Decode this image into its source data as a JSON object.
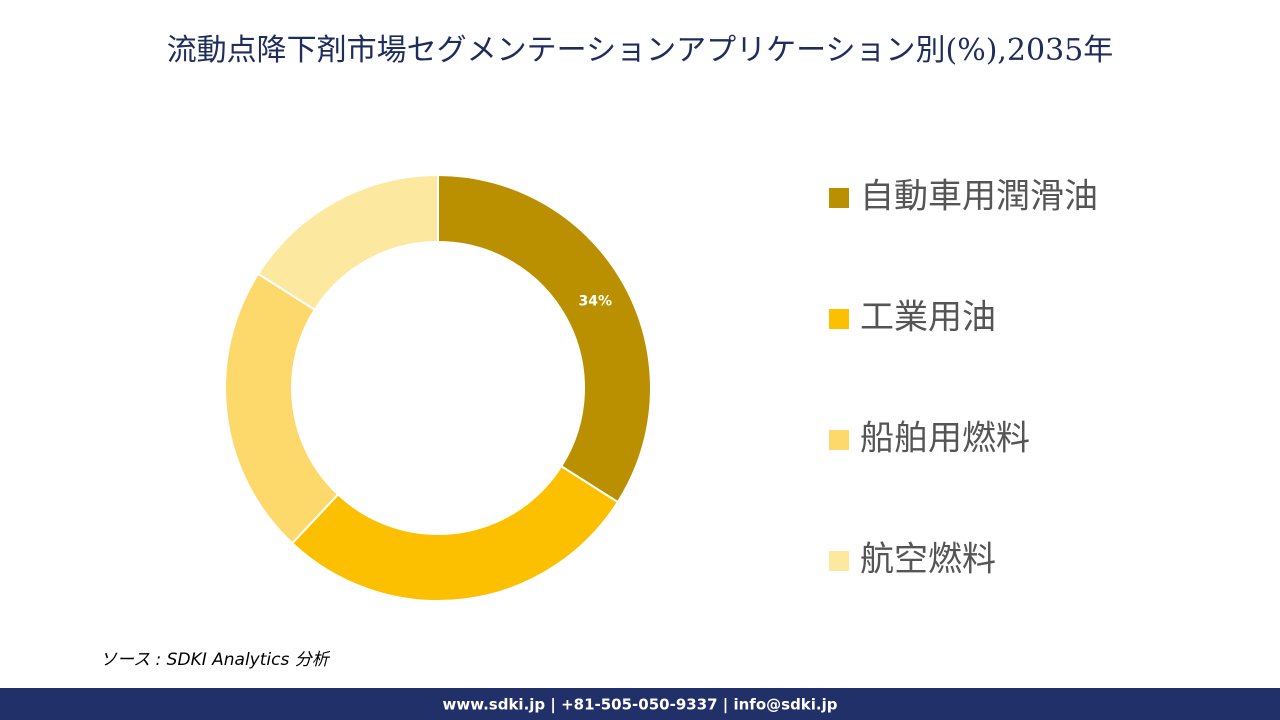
{
  "chart_data": {
    "type": "donut",
    "title": "流動点降下剤市場セグメンテーションアプリケーション別(%),2035年",
    "categories": [
      "自動車用潤滑油",
      "工業用油",
      "船舶用燃料",
      "航空燃料"
    ],
    "values": [
      34,
      28,
      22,
      16
    ],
    "value_labels": [
      "34%",
      null,
      null,
      null
    ],
    "colors": [
      "#bb9000",
      "#fcc000",
      "#fcd96a",
      "#fde8a0"
    ],
    "legend": "right"
  },
  "source": "ソース : SDKI Analytics 分析",
  "footer": "www.sdki.jp | +81-505-050-9337 | info@sdki.jp"
}
